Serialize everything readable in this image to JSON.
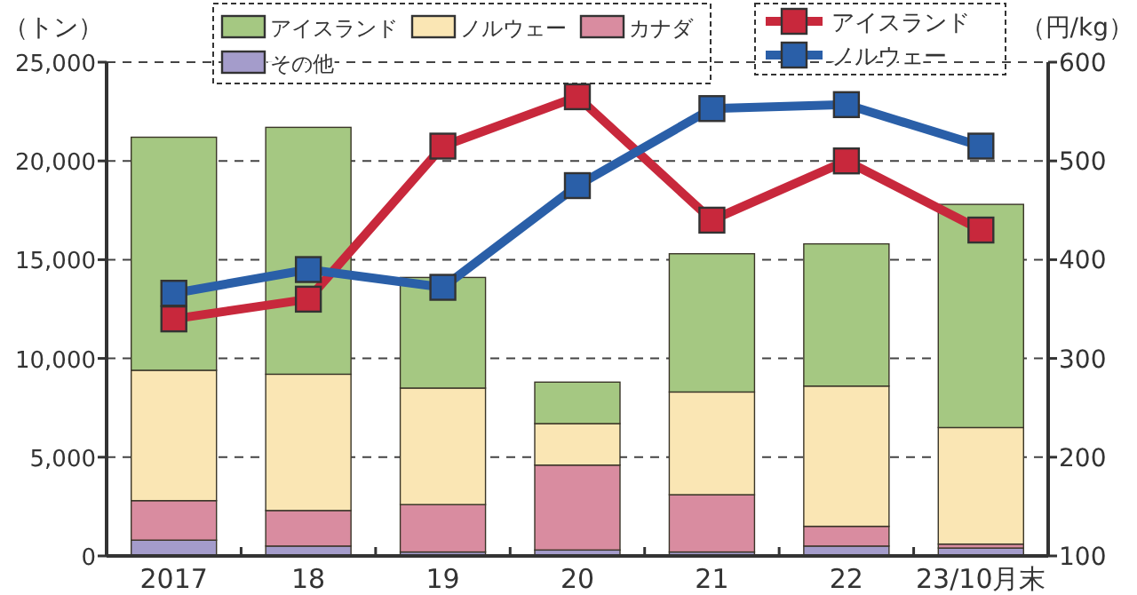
{
  "chart_data": {
    "type": "bar",
    "stacked": true,
    "ylabel": "（トン）",
    "y2label": "（円/kg）",
    "categories": [
      "2017",
      "18",
      "19",
      "20",
      "21",
      "22",
      "23/10月末"
    ],
    "series": [
      {
        "name": "その他",
        "color": "#a49ccb",
        "values": [
          800,
          500,
          200,
          300,
          200,
          500,
          400
        ]
      },
      {
        "name": "カナダ",
        "color": "#d98ca0",
        "values": [
          2000,
          1800,
          2400,
          4300,
          2900,
          1000,
          200
        ]
      },
      {
        "name": "ノルウェー",
        "color": "#fae6b4",
        "values": [
          6600,
          6900,
          5900,
          2100,
          5200,
          7100,
          5900
        ]
      },
      {
        "name": "アイスランド",
        "color": "#a5c882",
        "values": [
          11800,
          12500,
          5600,
          2100,
          7000,
          7200,
          11300
        ]
      },
      {
        "name": "アイスランド",
        "type": "line",
        "axis": "y2",
        "color": "#c8283c",
        "values": [
          340,
          360,
          515,
          565,
          440,
          500,
          430
        ]
      },
      {
        "name": "ノルウェー",
        "type": "line",
        "axis": "y2",
        "color": "#2a5fa8",
        "values": [
          366,
          390,
          372,
          475,
          553,
          557,
          515
        ]
      }
    ],
    "ylim": [
      0,
      25000
    ],
    "yticks": [
      {
        "value": 0,
        "label": "0"
      },
      {
        "value": 5000,
        "label": "5,000"
      },
      {
        "value": 10000,
        "label": "10,000"
      },
      {
        "value": 15000,
        "label": "15,000"
      },
      {
        "value": 20000,
        "label": "20,000"
      },
      {
        "value": 25000,
        "label": "25,000"
      }
    ],
    "y2lim": [
      100,
      600
    ],
    "y2ticks": [
      100,
      200,
      300,
      400,
      500,
      600
    ],
    "grid": "y",
    "legend": "top",
    "marker": "square"
  }
}
